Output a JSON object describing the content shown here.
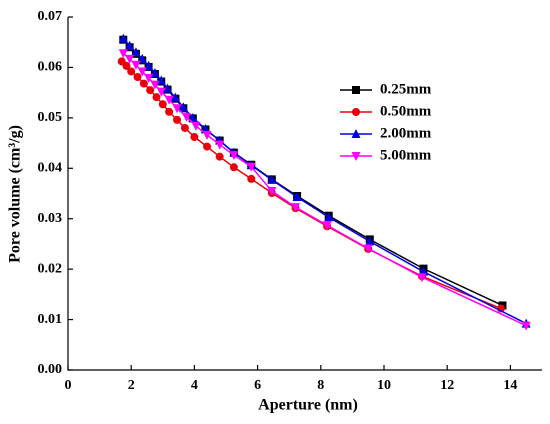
{
  "chart_data": {
    "type": "line",
    "xlabel": "Aperture (nm)",
    "ylabel": "Pore volume (cm³/g)",
    "xlim": [
      0,
      15
    ],
    "ylim": [
      0,
      0.07
    ],
    "xticks": [
      0,
      2,
      4,
      6,
      8,
      10,
      12,
      14
    ],
    "yticks": [
      {
        "value": 0,
        "label": "0.00"
      },
      {
        "value": 0.01,
        "label": "0.01"
      },
      {
        "value": 0.02,
        "label": "0.02"
      },
      {
        "value": 0.03,
        "label": "0.03"
      },
      {
        "value": 0.04,
        "label": "0.04"
      },
      {
        "value": 0.05,
        "label": "0.05"
      },
      {
        "value": 0.06,
        "label": "0.06"
      },
      {
        "value": 0.07,
        "label": "0.07"
      }
    ],
    "legend": "upper center",
    "series": [
      {
        "name": "0.25mm",
        "color": "#000000",
        "marker": "square",
        "x": [
          1.75,
          1.95,
          2.15,
          2.35,
          2.55,
          2.75,
          2.95,
          3.15,
          3.4,
          3.65,
          3.95,
          4.35,
          4.8,
          5.25,
          5.8,
          6.45,
          7.25,
          8.25,
          9.55,
          11.25,
          13.75
        ],
        "values": [
          0.0655,
          0.064,
          0.0627,
          0.0614,
          0.0601,
          0.0587,
          0.0572,
          0.0556,
          0.0538,
          0.0519,
          0.0499,
          0.0477,
          0.0455,
          0.0431,
          0.0407,
          0.0378,
          0.0345,
          0.0306,
          0.0259,
          0.0201,
          0.0128
        ]
      },
      {
        "name": "0.50mm",
        "color": "#e8000b",
        "marker": "circle",
        "x": [
          1.7,
          1.85,
          2.0,
          2.2,
          2.4,
          2.6,
          2.8,
          3.0,
          3.2,
          3.45,
          3.7,
          4.0,
          4.4,
          4.8,
          5.25,
          5.8,
          6.45,
          7.2,
          8.2,
          9.5,
          11.2,
          13.7
        ],
        "values": [
          0.0612,
          0.0603,
          0.0592,
          0.0581,
          0.0568,
          0.0555,
          0.0541,
          0.0527,
          0.0512,
          0.0496,
          0.048,
          0.0462,
          0.0443,
          0.0423,
          0.0402,
          0.0379,
          0.0351,
          0.0321,
          0.0285,
          0.024,
          0.0186,
          0.0122
        ]
      },
      {
        "name": "2.00mm",
        "color": "#0000e0",
        "marker": "triangle-up",
        "x": [
          1.75,
          1.95,
          2.15,
          2.35,
          2.55,
          2.75,
          2.95,
          3.15,
          3.4,
          3.65,
          3.95,
          4.35,
          4.8,
          5.25,
          5.8,
          6.45,
          7.25,
          8.25,
          9.55,
          11.25,
          14.5
        ],
        "values": [
          0.0657,
          0.0643,
          0.063,
          0.0617,
          0.0603,
          0.0589,
          0.0574,
          0.0558,
          0.054,
          0.0521,
          0.05,
          0.0478,
          0.0455,
          0.0431,
          0.0406,
          0.0377,
          0.0343,
          0.0303,
          0.0255,
          0.0195,
          0.0092
        ]
      },
      {
        "name": "5.00mm",
        "color": "#ff00ff",
        "marker": "triangle-down",
        "x": [
          1.75,
          1.95,
          2.15,
          2.35,
          2.55,
          2.75,
          2.95,
          3.2,
          3.45,
          3.75,
          4.05,
          4.4,
          4.8,
          5.25,
          5.8,
          6.45,
          7.2,
          8.2,
          9.5,
          11.2,
          14.5
        ],
        "values": [
          0.0628,
          0.0617,
          0.0605,
          0.0592,
          0.0579,
          0.0566,
          0.0552,
          0.0536,
          0.0519,
          0.0502,
          0.0484,
          0.0466,
          0.0447,
          0.0426,
          0.0403,
          0.0355,
          0.0323,
          0.0287,
          0.0241,
          0.0184,
          0.0088
        ]
      }
    ]
  }
}
